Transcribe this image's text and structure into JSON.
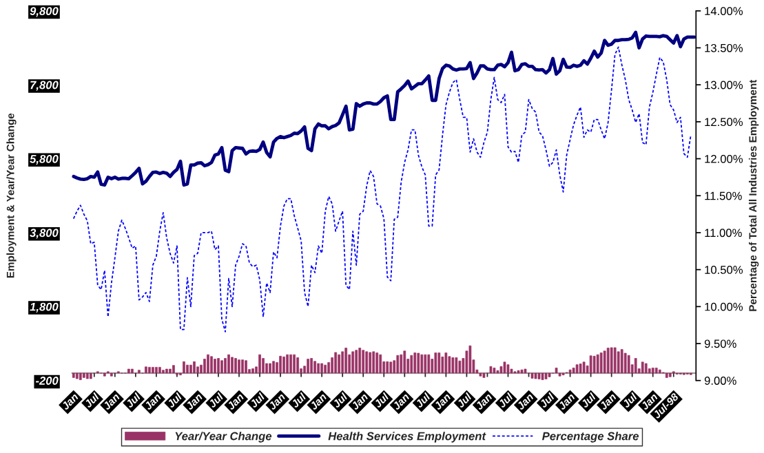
{
  "chart_data": {
    "type": "bar",
    "ylabel": "Employment & Year/Year Change",
    "y2label": "Percentage of Total All Industries Employment",
    "categories": [
      "Jan",
      null,
      null,
      null,
      null,
      null,
      "Jul",
      null,
      null,
      null,
      null,
      null,
      "Jan",
      null,
      null,
      null,
      null,
      null,
      "Jul",
      null,
      null,
      null,
      null,
      null,
      "Jan",
      null,
      null,
      null,
      null,
      null,
      "Jul",
      null,
      null,
      null,
      null,
      null,
      "Jan",
      null,
      null,
      null,
      null,
      null,
      "Jul",
      null,
      null,
      null,
      null,
      null,
      "Jan",
      null,
      null,
      null,
      null,
      null,
      "Jul",
      null,
      null,
      null,
      null,
      null,
      "Jan",
      null,
      null,
      null,
      null,
      null,
      "Jul",
      null,
      null,
      null,
      null,
      null,
      "Jan",
      null,
      null,
      null,
      null,
      null,
      "Jul",
      null,
      null,
      null,
      null,
      null,
      "Jan",
      null,
      null,
      null,
      null,
      null,
      "Jul",
      null,
      null,
      null,
      null,
      null,
      "Jan",
      null,
      null,
      null,
      null,
      null,
      "Jul",
      null,
      null,
      null,
      null,
      null,
      "Jan",
      null,
      null,
      null,
      null,
      null,
      "Jul",
      null,
      null,
      null,
      null,
      null,
      "Jan",
      null,
      null,
      null,
      null,
      null,
      "Jul",
      null,
      null,
      null,
      null,
      null,
      "Jan",
      null,
      null,
      null,
      null,
      null,
      "Jul",
      null,
      null,
      null,
      null,
      null,
      "Jan",
      null,
      null,
      null,
      null,
      null,
      "Jul",
      null,
      null,
      null,
      null,
      null,
      "Jan",
      null,
      null,
      null,
      null,
      null,
      "Jul",
      null,
      null,
      null,
      null,
      null,
      "Jan",
      null,
      null,
      null,
      null,
      null,
      "Jul-98",
      null,
      null,
      null,
      null,
      null,
      null
    ],
    "series": [
      {
        "name": "Year/Year Change",
        "color": "#993366",
        "values": [
          -120,
          -150,
          -180,
          -120,
          -150,
          -150,
          0,
          40,
          0,
          -80,
          40,
          -80,
          0,
          40,
          0,
          0,
          110,
          110,
          0,
          80,
          0,
          170,
          160,
          160,
          160,
          160,
          80,
          110,
          110,
          210,
          -40,
          -50,
          310,
          220,
          220,
          310,
          170,
          220,
          380,
          500,
          450,
          380,
          400,
          340,
          400,
          500,
          430,
          400,
          360,
          360,
          340,
          100,
          120,
          170,
          500,
          400,
          260,
          260,
          320,
          290,
          460,
          440,
          500,
          500,
          500,
          420,
          120,
          190,
          380,
          400,
          320,
          260,
          260,
          220,
          290,
          420,
          560,
          500,
          580,
          680,
          500,
          580,
          620,
          680,
          620,
          580,
          560,
          580,
          550,
          500,
          310,
          310,
          300,
          340,
          480,
          500,
          600,
          380,
          480,
          550,
          540,
          500,
          500,
          500,
          380,
          550,
          550,
          440,
          550,
          450,
          420,
          420,
          330,
          400,
          600,
          740,
          360,
          90,
          -80,
          -120,
          0,
          180,
          140,
          70,
          180,
          300,
          230,
          110,
          40,
          70,
          90,
          110,
          0,
          -140,
          -150,
          -160,
          -180,
          -160,
          -100,
          0,
          140,
          -80,
          -50,
          20,
          90,
          140,
          230,
          250,
          300,
          200,
          470,
          460,
          500,
          550,
          600,
          680,
          690,
          690,
          580,
          640,
          540,
          480,
          230,
          400,
          120,
          300,
          260,
          120,
          140,
          140,
          90,
          20,
          -120,
          -100,
          40,
          -30,
          -30,
          -40,
          -30,
          -40,
          null
        ]
      },
      {
        "name": "Health Services Employment",
        "type": "line",
        "color": "#000080",
        "line_style": "solid",
        "values": [
          5320,
          5280,
          5250,
          5240,
          5260,
          5320,
          5300,
          5440,
          5110,
          5090,
          5300,
          5260,
          5300,
          5250,
          5270,
          5270,
          5260,
          5340,
          5430,
          5540,
          5120,
          5190,
          5320,
          5430,
          5440,
          5400,
          5430,
          5410,
          5320,
          5430,
          5510,
          5730,
          5090,
          5120,
          5630,
          5630,
          5680,
          5690,
          5610,
          5640,
          5700,
          5900,
          5930,
          6100,
          5490,
          5450,
          6020,
          6100,
          6090,
          6080,
          5930,
          6000,
          6010,
          6000,
          6050,
          6250,
          5970,
          5850,
          6250,
          6350,
          6400,
          6370,
          6400,
          6430,
          6490,
          6480,
          6550,
          6660,
          6080,
          6020,
          6610,
          6740,
          6690,
          6690,
          6610,
          6670,
          6700,
          6770,
          6990,
          7220,
          6580,
          6600,
          7290,
          7220,
          7280,
          7310,
          7310,
          7280,
          7280,
          7350,
          7450,
          7500,
          6860,
          6860,
          7610,
          7690,
          7780,
          7900,
          7690,
          7760,
          7830,
          7830,
          7930,
          8040,
          7380,
          7380,
          7970,
          8240,
          8330,
          8310,
          8230,
          8200,
          8230,
          8230,
          8240,
          8400,
          7970,
          8120,
          8310,
          8310,
          8230,
          8210,
          8210,
          8330,
          8350,
          8290,
          8400,
          8680,
          8180,
          8210,
          8350,
          8370,
          8300,
          8300,
          8210,
          8200,
          8210,
          8120,
          8210,
          8510,
          8090,
          8180,
          8490,
          8280,
          8270,
          8330,
          8300,
          8330,
          8450,
          8360,
          8520,
          8710,
          8550,
          8660,
          9000,
          8870,
          8900,
          9000,
          9000,
          9020,
          9020,
          9030,
          9070,
          9220,
          8800,
          9040,
          9120,
          9110,
          9110,
          9110,
          9100,
          9130,
          9110,
          9020,
          8930,
          9130,
          8830,
          9040,
          9090,
          9090,
          9090
        ]
      },
      {
        "name": "Percentage Share",
        "type": "line",
        "axis": "y2",
        "color": "#0000ff",
        "line_style": "dotted",
        "values": [
          11.19,
          11.29,
          11.37,
          11.25,
          11.16,
          10.85,
          10.87,
          10.29,
          10.23,
          10.49,
          9.86,
          10.32,
          10.66,
          11.02,
          11.17,
          11.06,
          10.93,
          10.79,
          10.82,
          10.09,
          10.13,
          10.19,
          10.07,
          10.56,
          10.68,
          11.02,
          11.27,
          10.93,
          10.72,
          10.59,
          10.82,
          9.69,
          9.69,
          10.39,
          10.0,
          10.69,
          10.72,
          11.0,
          11.0,
          11.0,
          11.02,
          10.77,
          10.82,
          9.83,
          9.66,
          10.38,
          10.0,
          10.56,
          10.68,
          10.85,
          10.82,
          10.59,
          10.54,
          10.56,
          10.36,
          9.86,
          10.32,
          10.19,
          10.74,
          10.66,
          11.09,
          11.36,
          11.46,
          11.46,
          11.23,
          11.06,
          10.89,
          10.19,
          10.0,
          10.56,
          10.46,
          10.82,
          10.72,
          11.29,
          11.49,
          11.39,
          11.02,
          11.16,
          11.29,
          10.29,
          10.23,
          11.02,
          10.56,
          11.25,
          11.29,
          11.63,
          11.84,
          11.76,
          11.39,
          11.36,
          11.19,
          10.4,
          10.35,
          11.18,
          11.21,
          11.68,
          11.95,
          12.12,
          12.39,
          12.39,
          12.05,
          11.89,
          11.78,
          11.09,
          11.09,
          11.78,
          11.85,
          12.32,
          12.73,
          12.9,
          13.03,
          13.07,
          12.8,
          12.56,
          12.56,
          12.09,
          12.27,
          12.09,
          12.02,
          12.22,
          12.36,
          12.8,
          13.1,
          12.8,
          12.76,
          12.87,
          12.16,
          12.09,
          12.1,
          11.95,
          12.32,
          12.36,
          12.8,
          12.68,
          12.63,
          12.36,
          12.31,
          12.12,
          11.9,
          11.95,
          12.12,
          11.78,
          11.55,
          12.05,
          12.26,
          12.46,
          12.59,
          12.7,
          12.29,
          12.39,
          12.36,
          12.53,
          12.53,
          12.39,
          12.27,
          12.49,
          12.93,
          13.41,
          13.51,
          13.27,
          13.07,
          12.8,
          12.66,
          12.49,
          12.61,
          12.22,
          12.19,
          12.7,
          12.9,
          13.14,
          13.37,
          13.31,
          13.07,
          12.73,
          12.66,
          12.49,
          12.56,
          12.07,
          12.02,
          12.32,
          null
        ]
      }
    ],
    "ylim": [
      -200,
      9800
    ],
    "yticks": [
      {
        "value": -200,
        "label": "-200"
      },
      {
        "value": 1800,
        "label": "1,800"
      },
      {
        "value": 3800,
        "label": "3,800"
      },
      {
        "value": 5800,
        "label": "5,800"
      },
      {
        "value": 7800,
        "label": "7,800"
      },
      {
        "value": 9800,
        "label": "9,800"
      }
    ],
    "y2lim": [
      9,
      14
    ],
    "y2ticks": [
      {
        "value": 9,
        "label": "9.00%"
      },
      {
        "value": 9.5,
        "label": "9.50%"
      },
      {
        "value": 10,
        "label": "10.00%"
      },
      {
        "value": 10.5,
        "label": "10.50%"
      },
      {
        "value": 11,
        "label": "11.00%"
      },
      {
        "value": 11.5,
        "label": "11.50%"
      },
      {
        "value": 12,
        "label": "12.00%"
      },
      {
        "value": 12.5,
        "label": "12.50%"
      },
      {
        "value": 13,
        "label": "13.00%"
      },
      {
        "value": 13.5,
        "label": "13.50%"
      },
      {
        "value": 14,
        "label": "14.00%"
      }
    ],
    "legend": "bottom"
  }
}
